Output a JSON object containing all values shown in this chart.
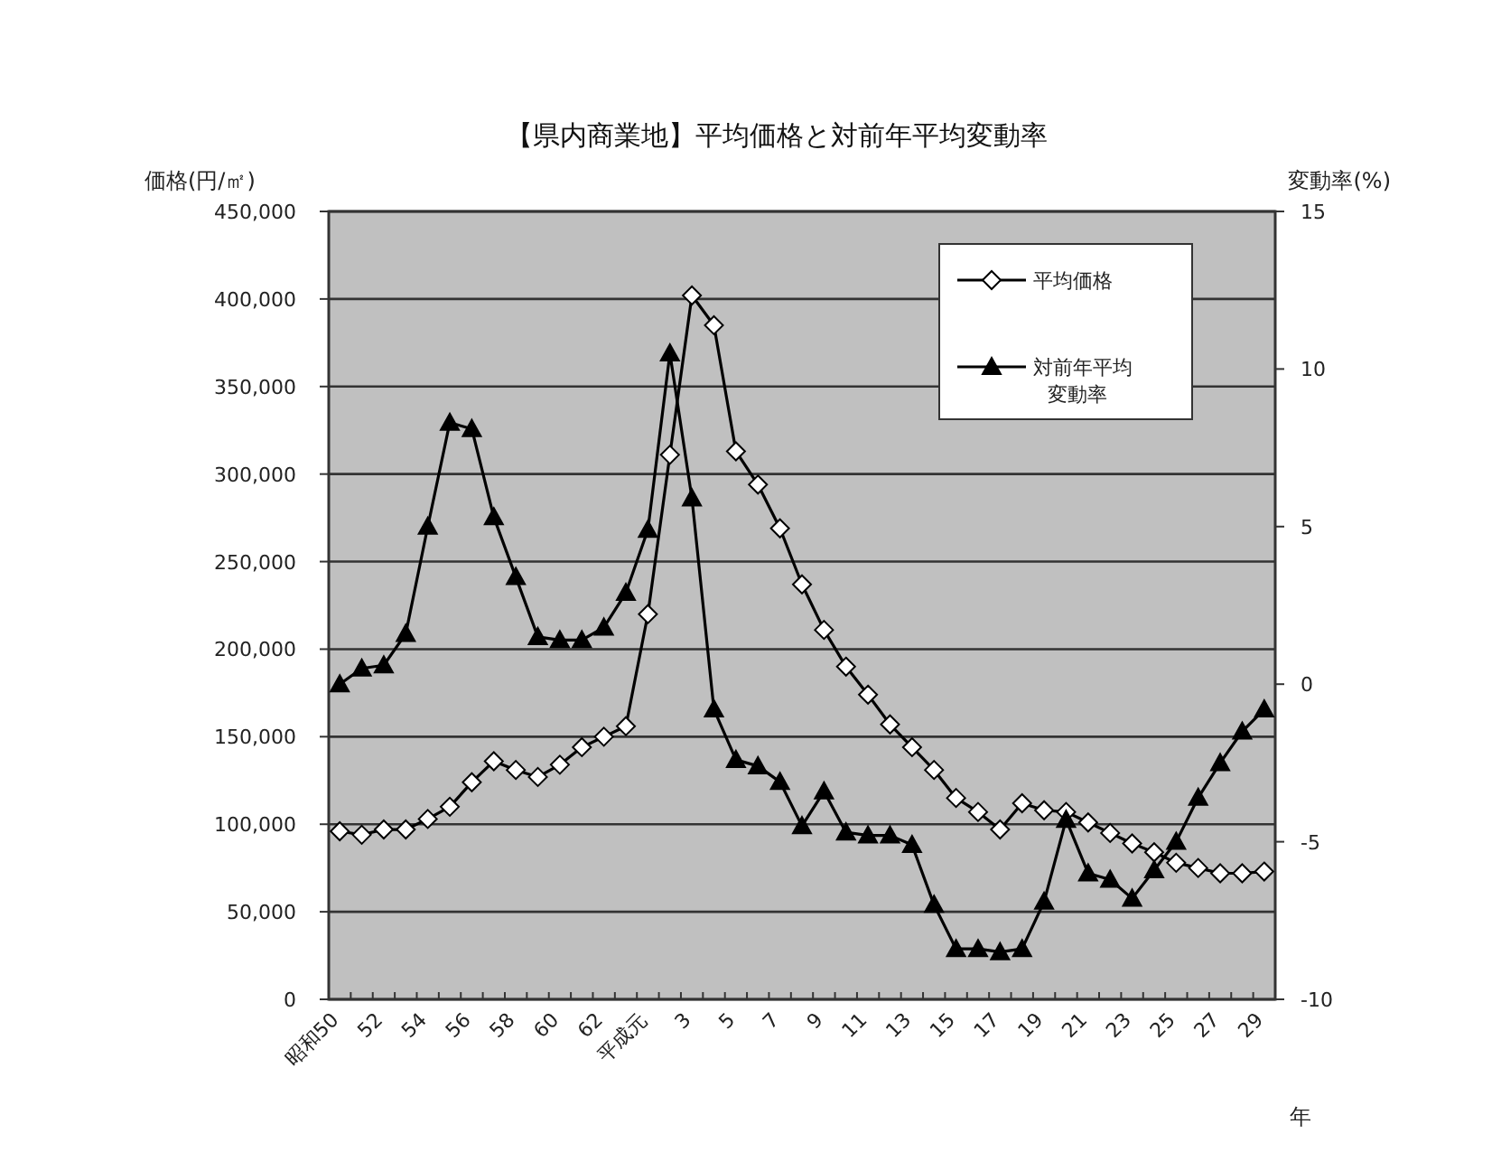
{
  "chart_data": {
    "type": "line",
    "title": "【県内商業地】平均価格と対前年平均変動率",
    "xlabel": "年",
    "ylabel": "価格(円/㎡)",
    "y2label": "変動率(%)",
    "categories": [
      "昭和50",
      null,
      "52",
      null,
      "54",
      null,
      "56",
      null,
      "58",
      null,
      "60",
      null,
      "62",
      null,
      "平成元",
      null,
      "3",
      null,
      "5",
      null,
      "7",
      null,
      "9",
      null,
      "11",
      null,
      "13",
      null,
      "15",
      null,
      "17",
      null,
      "19",
      null,
      "21",
      null,
      "23",
      null,
      "25",
      null,
      "27",
      null,
      "29"
    ],
    "series": [
      {
        "name": "平均価格",
        "color": "#000000",
        "marker": "diamond",
        "values": [
          96000,
          94000,
          97000,
          97000,
          103000,
          110000,
          124000,
          136000,
          131000,
          127000,
          134000,
          144000,
          150000,
          156000,
          220000,
          311000,
          402000,
          385000,
          313000,
          294000,
          269000,
          237000,
          211000,
          190000,
          174000,
          157000,
          144000,
          131000,
          115000,
          107000,
          97000,
          112000,
          108000,
          107000,
          101000,
          95000,
          89000,
          84000,
          78000,
          75000,
          72000,
          72000,
          73000
        ]
      },
      {
        "name": "対前年平均変動率",
        "color": "#000000",
        "marker": "triangle",
        "axis": "y2",
        "values": [
          0.0,
          0.5,
          0.6,
          1.6,
          5.0,
          8.3,
          8.1,
          5.3,
          3.4,
          1.5,
          1.4,
          1.4,
          1.8,
          2.9,
          4.9,
          10.5,
          5.9,
          -0.8,
          -2.4,
          -2.6,
          -3.1,
          -4.5,
          -3.4,
          -4.7,
          -4.8,
          -4.8,
          -5.1,
          -7.0,
          -8.4,
          -8.4,
          -8.5,
          -8.4,
          -6.9,
          -4.3,
          -6.0,
          -6.2,
          -6.8,
          -5.9,
          -5.0,
          -3.6,
          -2.5,
          -1.5,
          -0.8
        ]
      }
    ],
    "ylim": [
      0,
      450000
    ],
    "yticks": [
      0,
      {
        "value": 50000,
        "label": "50,000"
      },
      {
        "value": 100000,
        "label": "100,000"
      },
      {
        "value": 150000,
        "label": "150,000"
      },
      {
        "value": 200000,
        "label": "200,000"
      },
      {
        "value": 250000,
        "label": "250,000"
      },
      {
        "value": 300000,
        "label": "300,000"
      },
      {
        "value": 350000,
        "label": "350,000"
      },
      {
        "value": 400000,
        "label": "400,000"
      },
      {
        "value": 450000,
        "label": "450,000"
      }
    ],
    "y2lim": [
      -10,
      15
    ],
    "y2ticks": [
      -10,
      -5,
      0,
      5,
      10,
      15
    ],
    "grid": "y",
    "legend": "top right",
    "line_style": "solid"
  }
}
